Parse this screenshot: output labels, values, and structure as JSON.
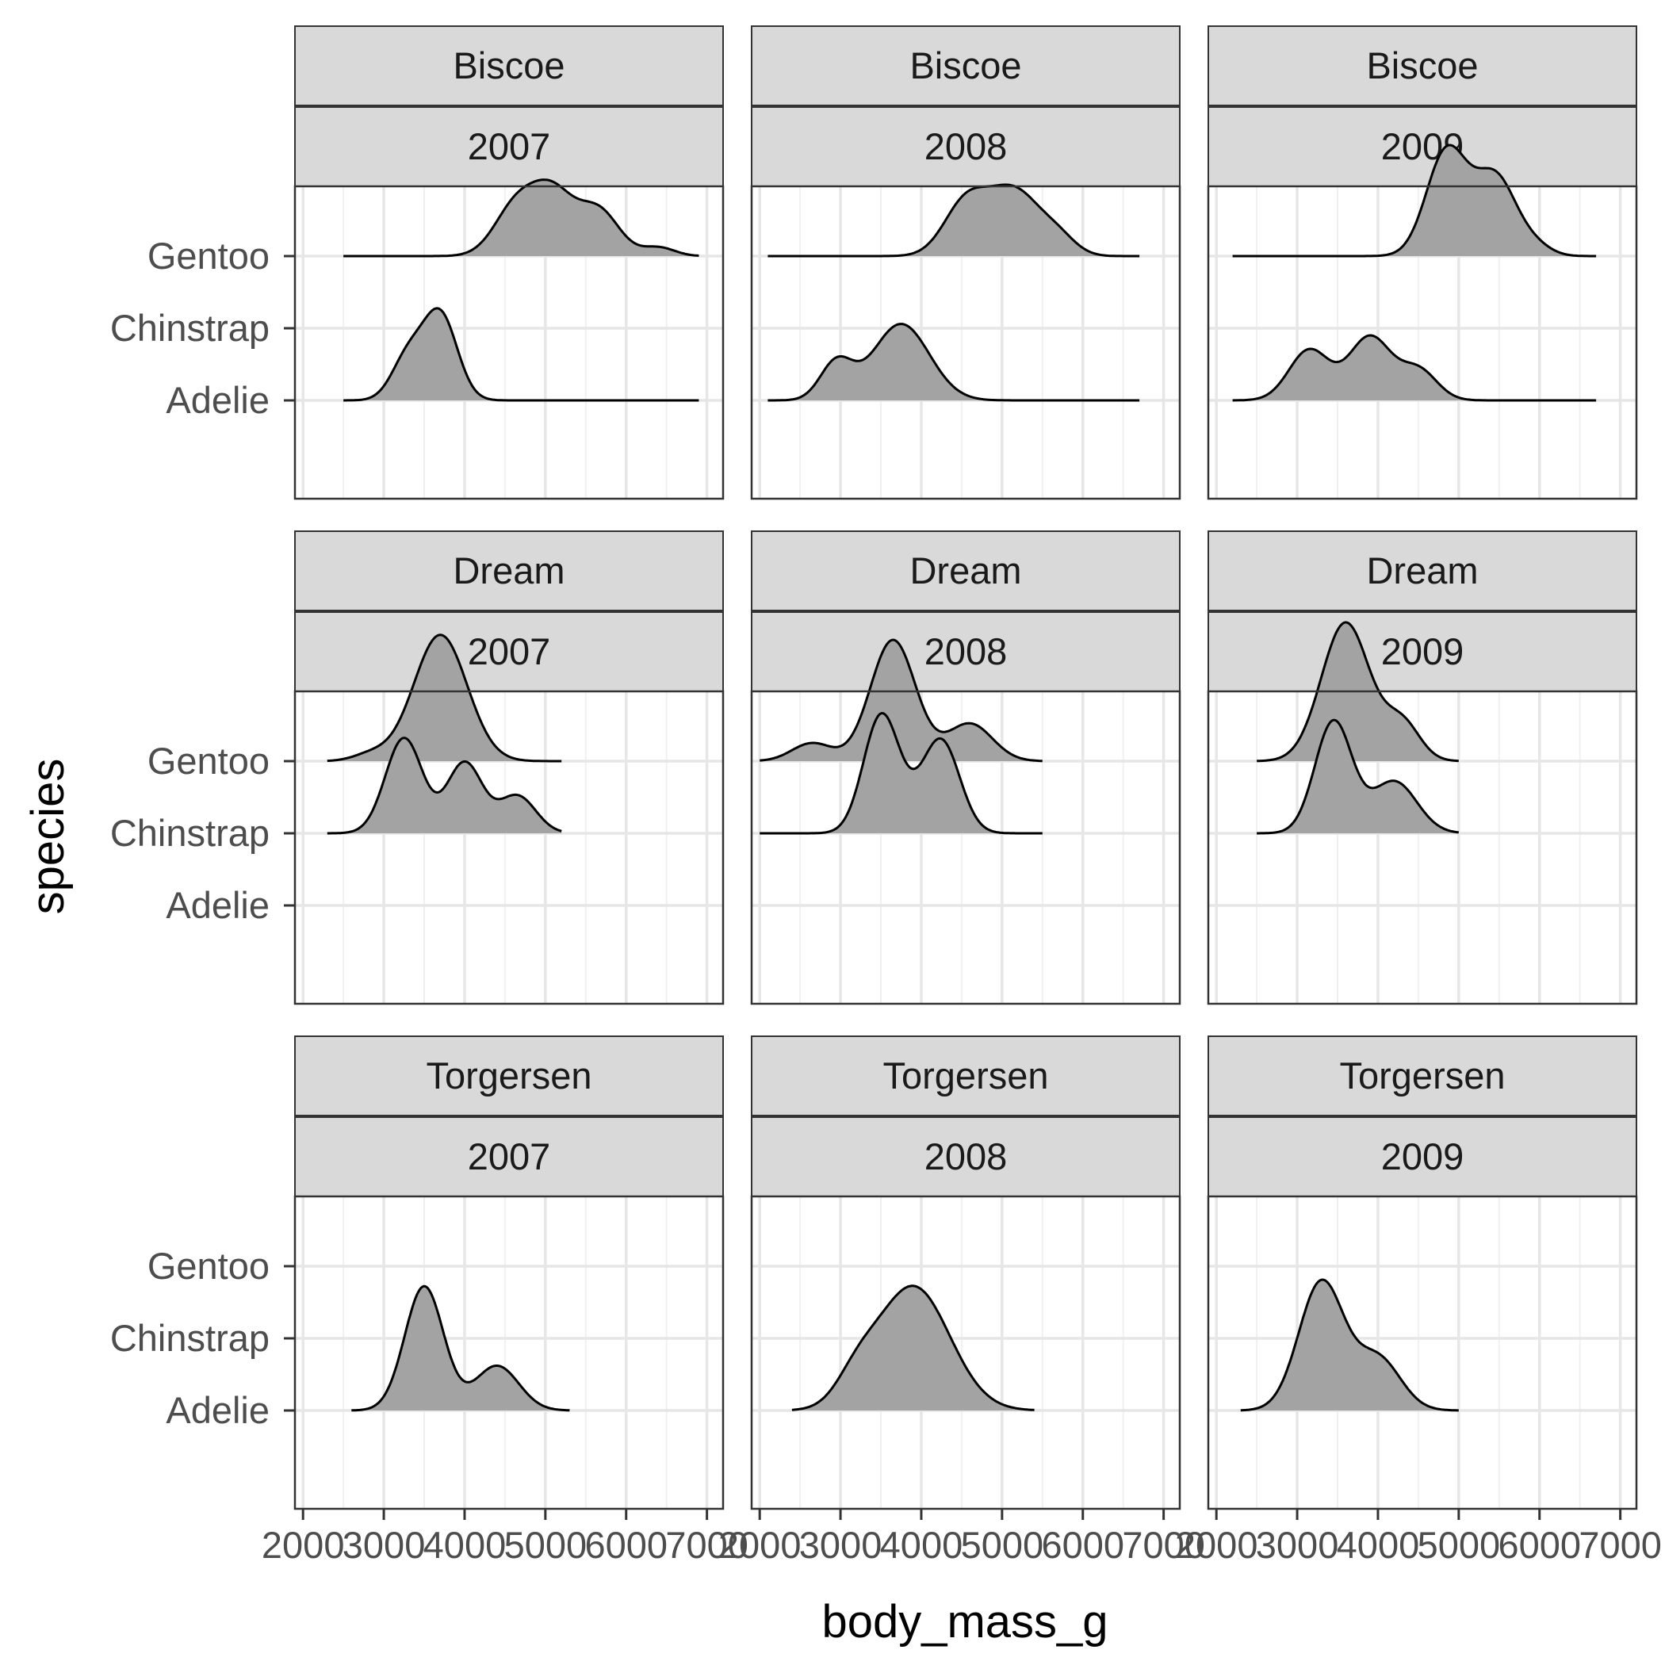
{
  "chart_data": {
    "type": "ridgeline",
    "xlabel": "body_mass_g",
    "ylabel": "species",
    "x_ticks": [
      2000,
      3000,
      4000,
      5000,
      6000,
      7000
    ],
    "x_tick_labels": [
      "2000",
      "3000",
      "4000",
      "5000",
      "6000",
      "7000"
    ],
    "xlim": [
      1900,
      7200
    ],
    "y_categories": [
      "Adelie",
      "Chinstrap",
      "Gentoo"
    ],
    "fill": "#a3a3a3",
    "grid": true,
    "facet_rows": [
      "Biscoe",
      "Dream",
      "Torgersen"
    ],
    "facet_cols": [
      "2007",
      "2008",
      "2009"
    ],
    "panels": [
      {
        "island": "Biscoe",
        "year": "2007",
        "range": [
          2500,
          6900
        ],
        "series": [
          {
            "species": "Gentoo",
            "peaks": [
              [
                4650,
                270,
                0.72
              ],
              [
                5100,
                250,
                0.78
              ],
              [
                5650,
                260,
                0.64
              ],
              [
                6400,
                200,
                0.12
              ]
            ]
          },
          {
            "species": "Adelie",
            "peaks": [
              [
                3300,
                200,
                0.6
              ],
              [
                3700,
                210,
                1.18
              ]
            ]
          }
        ]
      },
      {
        "island": "Biscoe",
        "year": "2008",
        "range": [
          2100,
          6700
        ],
        "series": [
          {
            "species": "Gentoo",
            "peaks": [
              [
                4550,
                270,
                0.72
              ],
              [
                5150,
                320,
                0.9
              ],
              [
                5700,
                220,
                0.22
              ]
            ]
          },
          {
            "species": "Adelie",
            "peaks": [
              [
                2950,
                200,
                0.52
              ],
              [
                3750,
                350,
                1.06
              ]
            ]
          }
        ]
      },
      {
        "island": "Biscoe",
        "year": "2009",
        "range": [
          2200,
          6700
        ],
        "series": [
          {
            "species": "Gentoo",
            "peaks": [
              [
                4850,
                250,
                1.45
              ],
              [
                5450,
                260,
                1.1
              ],
              [
                5950,
                200,
                0.12
              ]
            ]
          },
          {
            "species": "Adelie",
            "peaks": [
              [
                3150,
                250,
                0.7
              ],
              [
                3900,
                260,
                0.88
              ],
              [
                4500,
                230,
                0.42
              ]
            ]
          }
        ]
      },
      {
        "island": "Dream",
        "year": "2007",
        "range": [
          2300,
          5200
        ],
        "series": [
          {
            "species": "Gentoo",
            "peaks": [
              [
                2850,
                220,
                0.1
              ],
              [
                3700,
                330,
                1.75
              ]
            ]
          },
          {
            "species": "Chinstrap",
            "peaks": [
              [
                3250,
                230,
                1.32
              ],
              [
                4000,
                220,
                0.98
              ],
              [
                4650,
                230,
                0.52
              ]
            ]
          }
        ]
      },
      {
        "island": "Dream",
        "year": "2008",
        "range": [
          2000,
          5500
        ],
        "series": [
          {
            "species": "Gentoo",
            "peaks": [
              [
                2650,
                250,
                0.25
              ],
              [
                3650,
                280,
                1.68
              ],
              [
                4600,
                280,
                0.52
              ]
            ]
          },
          {
            "species": "Chinstrap",
            "peaks": [
              [
                3500,
                220,
                1.58
              ],
              [
                4250,
                230,
                1.25
              ],
              [
                3850,
                250,
                0.2
              ]
            ]
          }
        ]
      },
      {
        "island": "Dream",
        "year": "2009",
        "range": [
          2500,
          5000
        ],
        "series": [
          {
            "species": "Gentoo",
            "peaks": [
              [
                3600,
                300,
                1.92
              ],
              [
                4300,
                220,
                0.52
              ]
            ]
          },
          {
            "species": "Chinstrap",
            "peaks": [
              [
                3450,
                230,
                1.55
              ],
              [
                4200,
                280,
                0.72
              ]
            ]
          }
        ]
      },
      {
        "island": "Torgersen",
        "year": "2007",
        "range": [
          2600,
          5300
        ],
        "series": [
          {
            "species": "Adelie",
            "peaks": [
              [
                3500,
                240,
                1.72
              ],
              [
                4400,
                270,
                0.62
              ]
            ]
          }
        ]
      },
      {
        "island": "Torgersen",
        "year": "2008",
        "range": [
          2400,
          5400
        ],
        "series": [
          {
            "species": "Adelie",
            "peaks": [
              [
                3200,
                250,
                0.35
              ],
              [
                3900,
                450,
                1.72
              ]
            ]
          }
        ]
      },
      {
        "island": "Torgersen",
        "year": "2009",
        "range": [
          2300,
          5000
        ],
        "series": [
          {
            "species": "Adelie",
            "peaks": [
              [
                3300,
                280,
                1.78
              ],
              [
                4000,
                280,
                0.72
              ]
            ]
          }
        ]
      }
    ]
  }
}
